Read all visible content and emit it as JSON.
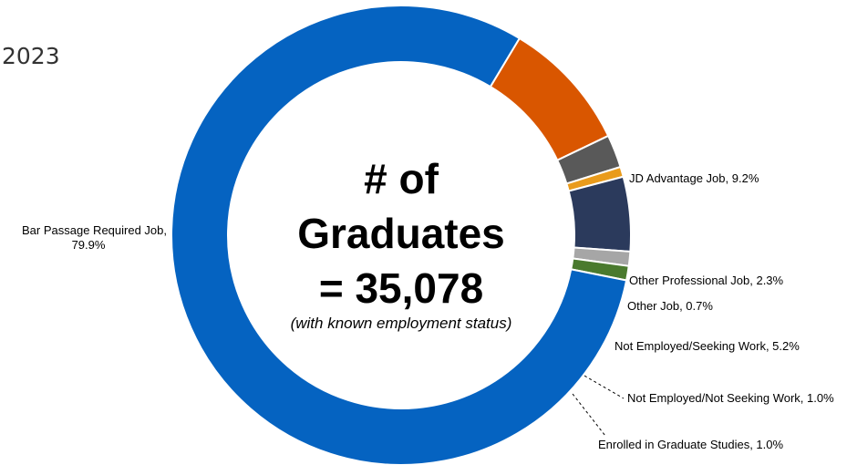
{
  "year_label": "2023",
  "chart_data": {
    "type": "pie",
    "center": {
      "line1": "# of",
      "line2": "Graduates",
      "line3": "= 35,078",
      "note": "(with known employment status)"
    },
    "slices": [
      {
        "label": "JD Advantage Job",
        "value": 9.2,
        "color": "#D95600"
      },
      {
        "label": "Other Professional Job",
        "value": 2.3,
        "color": "#595959"
      },
      {
        "label": "Other Job",
        "value": 0.7,
        "color": "#E99B1C"
      },
      {
        "label": "Not Employed/Seeking Work",
        "value": 5.2,
        "color": "#2B3A5C"
      },
      {
        "label": "Not Employed/Not Seeking Work",
        "value": 1.0,
        "color": "#A6A6A6"
      },
      {
        "label": "Enrolled in Graduate Studies",
        "value": 1.0,
        "color": "#4A7A2E"
      },
      {
        "label": "Bar Passage Required Job",
        "value": 79.9,
        "color": "#0563C1"
      }
    ],
    "labels": [
      "JD Advantage Job, 9.2%",
      "Other Professional Job, 2.3%",
      "Other Job, 0.7%",
      "Not Employed/Seeking Work, 5.2%",
      "Not Employed/Not Seeking Work, 1.0%",
      "Enrolled in Graduate Studies, 1.0%",
      "Bar Passage Required Job,",
      "79.9%"
    ]
  }
}
